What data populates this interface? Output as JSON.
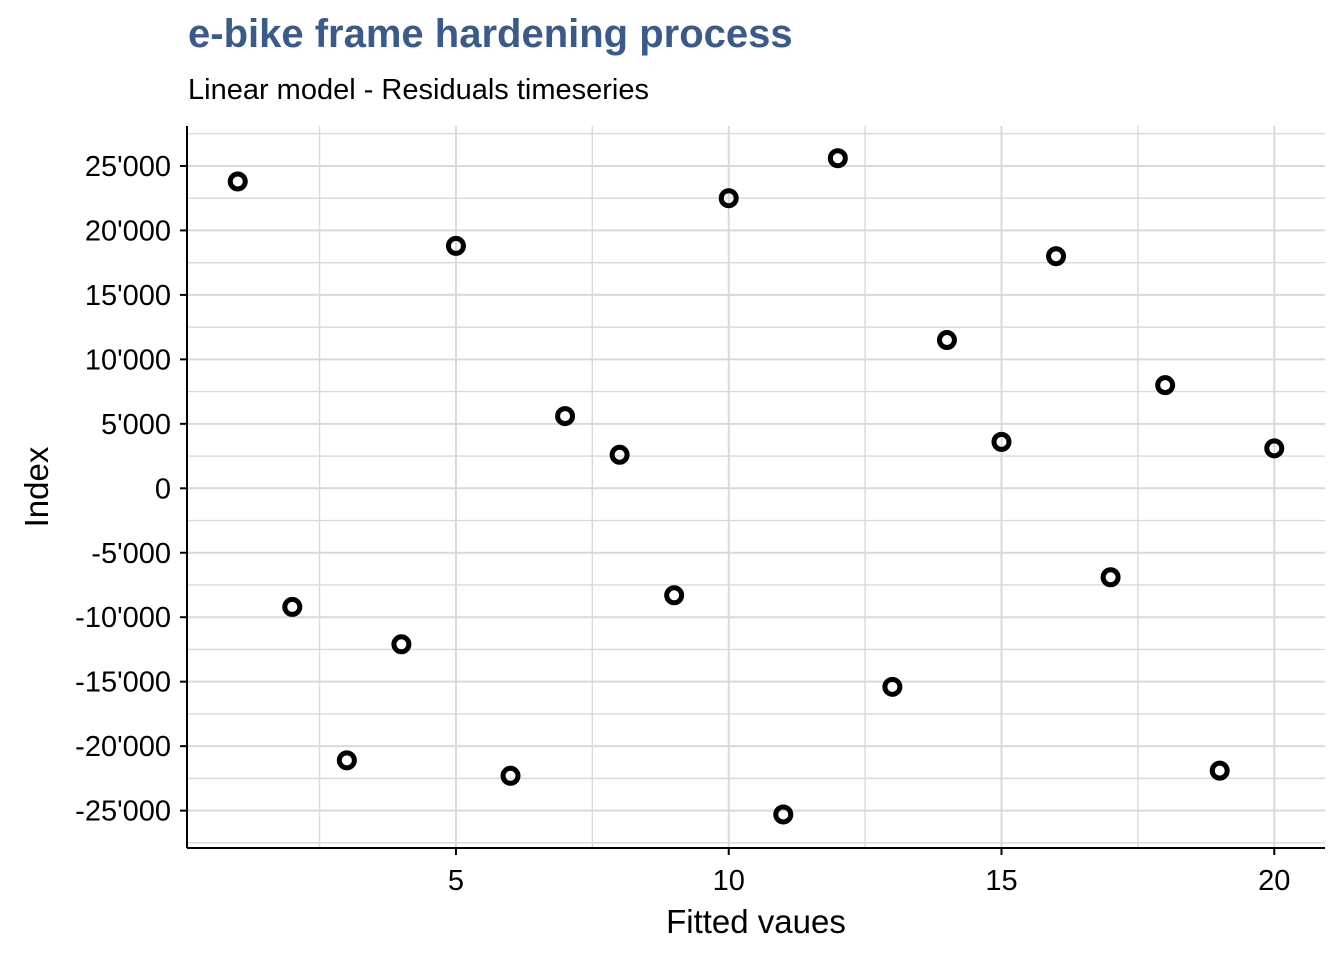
{
  "colors": {
    "title": "#3B5A8C",
    "grid": "#D9D9D9",
    "axis": "#000000",
    "point": "#000000"
  },
  "chart_data": {
    "type": "scatter",
    "title": "e-bike frame hardening process",
    "subtitle": "Linear model - Residuals timeseries",
    "xlabel": "Fitted vaues",
    "ylabel": "Index",
    "xlim": [
      0.07,
      20.93
    ],
    "ylim": [
      -27900,
      28100
    ],
    "x_ticks": [
      5,
      10,
      15,
      20
    ],
    "x_tick_labels": [
      "5",
      "10",
      "15",
      "20"
    ],
    "x_minor_ticks": [
      2.5,
      7.5,
      12.5,
      17.5
    ],
    "y_ticks": [
      -25000,
      -20000,
      -15000,
      -10000,
      -5000,
      0,
      5000,
      10000,
      15000,
      20000,
      25000
    ],
    "y_tick_labels": [
      "-25'000",
      "-20'000",
      "-15'000",
      "-10'000",
      "-5'000",
      "0",
      "5'000",
      "10'000",
      "15'000",
      "20'000",
      "25'000"
    ],
    "y_minor_ticks": [
      -27500,
      -22500,
      -17500,
      -12500,
      -7500,
      -2500,
      2500,
      7500,
      12500,
      17500,
      22500,
      27500
    ],
    "grid": true,
    "points": [
      {
        "x": 1,
        "y": 23800
      },
      {
        "x": 2,
        "y": -9200
      },
      {
        "x": 3,
        "y": -21100
      },
      {
        "x": 4,
        "y": -12100
      },
      {
        "x": 5,
        "y": 18800
      },
      {
        "x": 6,
        "y": -22300
      },
      {
        "x": 7,
        "y": 5600
      },
      {
        "x": 8,
        "y": 2600
      },
      {
        "x": 9,
        "y": -8300
      },
      {
        "x": 10,
        "y": 22500
      },
      {
        "x": 11,
        "y": -25300
      },
      {
        "x": 12,
        "y": 25600
      },
      {
        "x": 13,
        "y": -15400
      },
      {
        "x": 14,
        "y": 11500
      },
      {
        "x": 15,
        "y": 3600
      },
      {
        "x": 16,
        "y": 18000
      },
      {
        "x": 17,
        "y": -6900
      },
      {
        "x": 18,
        "y": 8000
      },
      {
        "x": 19,
        "y": -21900
      },
      {
        "x": 20,
        "y": 3100
      }
    ]
  }
}
